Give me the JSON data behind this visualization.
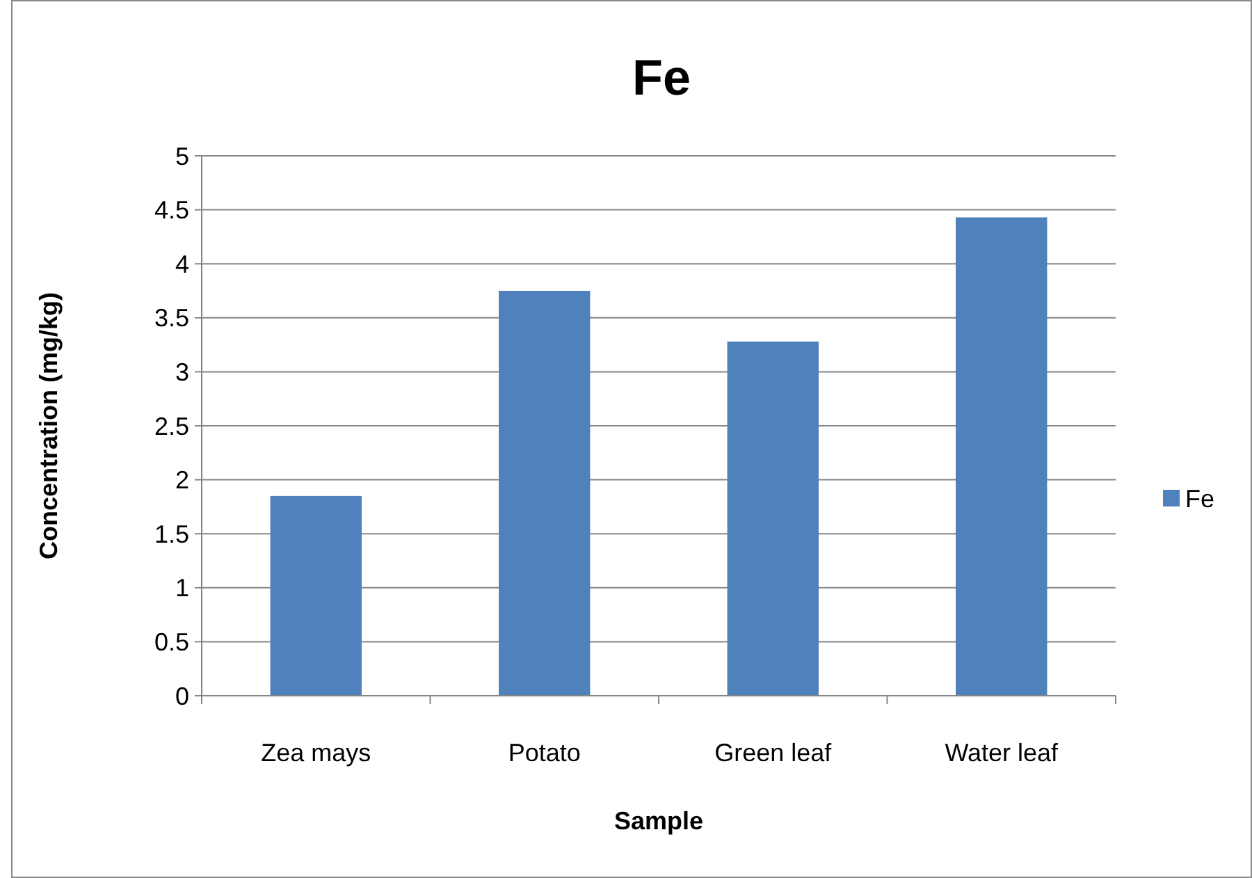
{
  "chart_data": {
    "type": "bar",
    "title": "Fe",
    "xlabel": "Sample",
    "ylabel": "Concentration (mg/kg)",
    "categories": [
      "Zea mays",
      "Potato",
      "Green leaf",
      "Water leaf"
    ],
    "series": [
      {
        "name": "Fe",
        "color": "#4f81bd",
        "values": [
          1.85,
          3.75,
          3.28,
          4.43
        ]
      }
    ],
    "ylim": [
      0,
      5
    ],
    "yticks": [
      0,
      0.5,
      1,
      1.5,
      2,
      2.5,
      3,
      3.5,
      4,
      4.5,
      5
    ],
    "grid": "y",
    "legend": "right"
  }
}
